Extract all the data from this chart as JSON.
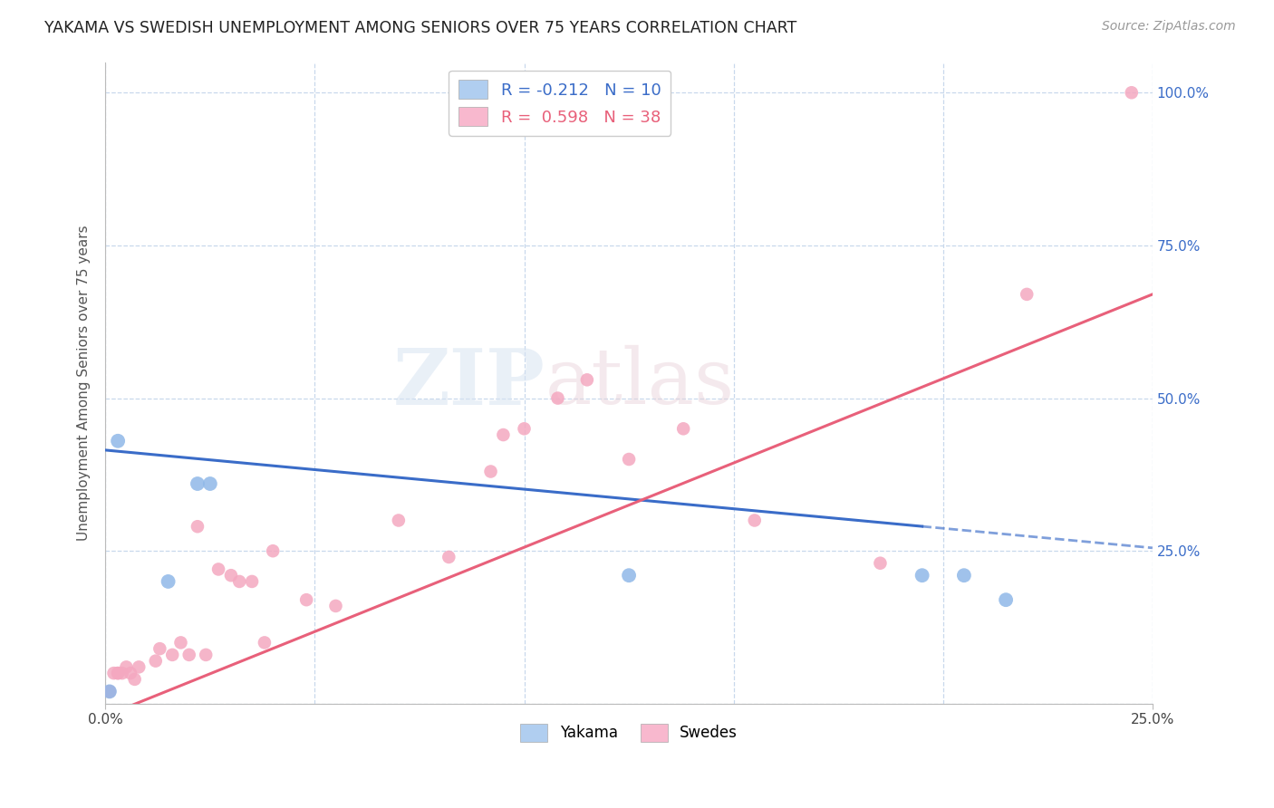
{
  "title": "YAKAMA VS SWEDISH UNEMPLOYMENT AMONG SENIORS OVER 75 YEARS CORRELATION CHART",
  "source": "Source: ZipAtlas.com",
  "ylabel": "Unemployment Among Seniors over 75 years",
  "xlim": [
    0.0,
    0.25
  ],
  "ylim": [
    0.0,
    1.05
  ],
  "x_ticks": [
    0.0,
    0.05,
    0.1,
    0.15,
    0.2,
    0.25
  ],
  "y_ticks": [
    0.0,
    0.25,
    0.5,
    0.75,
    1.0
  ],
  "y_tick_labels_right": [
    "",
    "25.0%",
    "50.0%",
    "75.0%",
    "100.0%"
  ],
  "yakama_r": -0.212,
  "yakama_n": 10,
  "swedes_r": 0.598,
  "swedes_n": 38,
  "yakama_color": "#8fb8e8",
  "swedes_color": "#f4a8c0",
  "yakama_line_color": "#3a6cc8",
  "swedes_line_color": "#e8607a",
  "watermark_zip": "ZIP",
  "watermark_atlas": "atlas",
  "yakama_x": [
    0.001,
    0.003,
    0.015,
    0.022,
    0.025,
    0.108,
    0.125,
    0.195,
    0.205,
    0.215
  ],
  "yakama_y": [
    0.02,
    0.43,
    0.2,
    0.36,
    0.36,
    1.0,
    0.21,
    0.21,
    0.21,
    0.17
  ],
  "swedes_x": [
    0.001,
    0.001,
    0.002,
    0.003,
    0.003,
    0.004,
    0.005,
    0.006,
    0.007,
    0.008,
    0.012,
    0.013,
    0.016,
    0.018,
    0.02,
    0.022,
    0.024,
    0.027,
    0.03,
    0.032,
    0.035,
    0.038,
    0.04,
    0.048,
    0.055,
    0.07,
    0.082,
    0.092,
    0.095,
    0.1,
    0.108,
    0.115,
    0.125,
    0.138,
    0.155,
    0.185,
    0.22,
    0.245
  ],
  "swedes_y": [
    0.02,
    0.02,
    0.05,
    0.05,
    0.05,
    0.05,
    0.06,
    0.05,
    0.04,
    0.06,
    0.07,
    0.09,
    0.08,
    0.1,
    0.08,
    0.29,
    0.08,
    0.22,
    0.21,
    0.2,
    0.2,
    0.1,
    0.25,
    0.17,
    0.16,
    0.3,
    0.24,
    0.38,
    0.44,
    0.45,
    0.5,
    0.53,
    0.4,
    0.45,
    0.3,
    0.23,
    0.67,
    1.0
  ],
  "yakama_dot_size": 130,
  "swedes_dot_size": 110,
  "background_color": "#ffffff",
  "grid_color": "#c8d8ec",
  "legend_box_color_yakama": "#b0cef0",
  "legend_box_color_swedes": "#f8b8ce",
  "yakama_line_solid_end": 0.195,
  "yakama_line_dashed_start": 0.195,
  "yakama_line_dashed_end": 0.25
}
